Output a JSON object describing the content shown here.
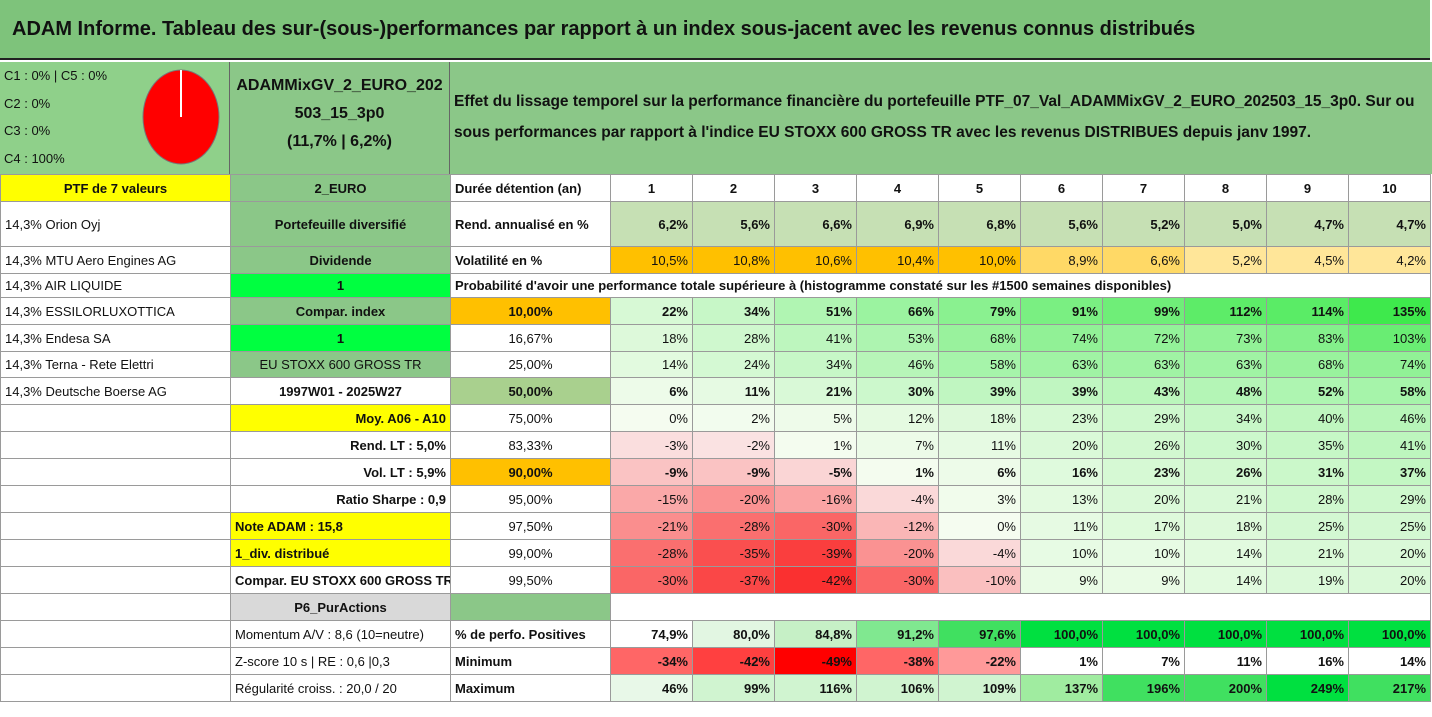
{
  "title": "ADAM Informe. Tableau des sur-(sous-)performances par rapport à un index sous-jacent avec les revenus connus distribués",
  "classes": [
    "C1 : 0% | C5 : 0%",
    "C2 : 0%",
    "C3 : 0%",
    "C4 : 100%"
  ],
  "pie": {
    "slices": [
      {
        "label": "C4",
        "value": 100,
        "color": "#ff0000"
      }
    ]
  },
  "portfolio_name_lines": [
    "ADAMMixGV_2_EURO_202",
    "503_15_3p0",
    "(11,7% | 6,2%)"
  ],
  "description": "Effet du lissage temporel sur la performance financière du portefeuille PTF_07_Val_ADAMMixGV_2_EURO_202503_15_3p0. Sur ou sous performances par rapport à l'indice EU STOXX 600 GROSS TR avec les revenus DISTRIBUES depuis janv 1997.",
  "header": {
    "ptf": "PTF de 7 valeurs",
    "euro": "2_EURO",
    "duree": "Durée détention (an)",
    "years": [
      "1",
      "2",
      "3",
      "4",
      "5",
      "6",
      "7",
      "8",
      "9",
      "10"
    ]
  },
  "holdings": [
    "14,3% Orion Oyj",
    "14,3% MTU Aero Engines AG",
    "14,3% AIR LIQUIDE",
    "14,3% ESSILORLUXOTTICA",
    "14,3% Endesa SA",
    "14,3% Terna - Rete Elettri",
    "14,3% Deutsche Boerse AG"
  ],
  "info": [
    "Portefeuille diversifié",
    "Dividende",
    "1",
    "Compar. index",
    "1",
    "EU STOXX 600 GROSS TR",
    "1997W01 - 2025W27",
    "Moy. A06 - A10",
    "Rend. LT : 5,0%",
    "Vol. LT : 5,9%",
    "Ratio Sharpe : 0,9",
    "Note ADAM : 15,8",
    "1_div. distribué",
    "Compar. EU STOXX 600 GROSS TR",
    "P6_PurActions",
    "Momentum A/V : 8,6 (10=neutre)",
    "Z-score 10 s | RE : 0,6 |0,3",
    "Régularité croiss. : 20,0 / 20"
  ],
  "rend_label": "Rend. annualisé en %",
  "rend": [
    "6,2%",
    "5,6%",
    "6,6%",
    "6,9%",
    "6,8%",
    "5,6%",
    "5,2%",
    "5,0%",
    "4,7%",
    "4,7%"
  ],
  "vol_label": "Volatilité en %",
  "vol": [
    "10,5%",
    "10,8%",
    "10,6%",
    "10,4%",
    "10,0%",
    "8,9%",
    "6,6%",
    "5,2%",
    "4,5%",
    "4,2%"
  ],
  "proba_label": "Probabilité d'avoir une performance totale supérieure à (histogramme constaté sur les #1500 semaines disponibles)",
  "proba_rows": [
    {
      "p": "10,00%",
      "v": [
        "22%",
        "34%",
        "51%",
        "66%",
        "79%",
        "91%",
        "99%",
        "112%",
        "114%",
        "135%"
      ]
    },
    {
      "p": "16,67%",
      "v": [
        "18%",
        "28%",
        "41%",
        "53%",
        "68%",
        "74%",
        "72%",
        "73%",
        "83%",
        "103%"
      ]
    },
    {
      "p": "25,00%",
      "v": [
        "14%",
        "24%",
        "34%",
        "46%",
        "58%",
        "63%",
        "63%",
        "63%",
        "68%",
        "74%"
      ]
    },
    {
      "p": "50,00%",
      "v": [
        "6%",
        "11%",
        "21%",
        "30%",
        "39%",
        "39%",
        "43%",
        "48%",
        "52%",
        "58%"
      ]
    },
    {
      "p": "75,00%",
      "v": [
        "0%",
        "2%",
        "5%",
        "12%",
        "18%",
        "23%",
        "29%",
        "34%",
        "40%",
        "46%"
      ]
    },
    {
      "p": "83,33%",
      "v": [
        "-3%",
        "-2%",
        "1%",
        "7%",
        "11%",
        "20%",
        "26%",
        "30%",
        "35%",
        "41%"
      ]
    },
    {
      "p": "90,00%",
      "v": [
        "-9%",
        "-9%",
        "-5%",
        "1%",
        "6%",
        "16%",
        "23%",
        "26%",
        "31%",
        "37%"
      ]
    },
    {
      "p": "95,00%",
      "v": [
        "-15%",
        "-20%",
        "-16%",
        "-4%",
        "3%",
        "13%",
        "20%",
        "21%",
        "28%",
        "29%"
      ]
    },
    {
      "p": "97,50%",
      "v": [
        "-21%",
        "-28%",
        "-30%",
        "-12%",
        "0%",
        "11%",
        "17%",
        "18%",
        "25%",
        "25%"
      ]
    },
    {
      "p": "99,00%",
      "v": [
        "-28%",
        "-35%",
        "-39%",
        "-20%",
        "-4%",
        "10%",
        "10%",
        "14%",
        "21%",
        "20%"
      ]
    },
    {
      "p": "99,50%",
      "v": [
        "-30%",
        "-37%",
        "-42%",
        "-30%",
        "-10%",
        "9%",
        "9%",
        "14%",
        "19%",
        "20%"
      ]
    }
  ],
  "pos_label": "% de perfo. Positives",
  "pos": [
    "74,9%",
    "80,0%",
    "84,8%",
    "91,2%",
    "97,6%",
    "100,0%",
    "100,0%",
    "100,0%",
    "100,0%",
    "100,0%"
  ],
  "min_label": "Minimum",
  "min": [
    "-34%",
    "-42%",
    "-49%",
    "-38%",
    "-22%",
    "1%",
    "7%",
    "11%",
    "16%",
    "14%"
  ],
  "max_label": "Maximum",
  "max": [
    "46%",
    "99%",
    "116%",
    "106%",
    "109%",
    "137%",
    "196%",
    "200%",
    "249%",
    "217%"
  ]
}
